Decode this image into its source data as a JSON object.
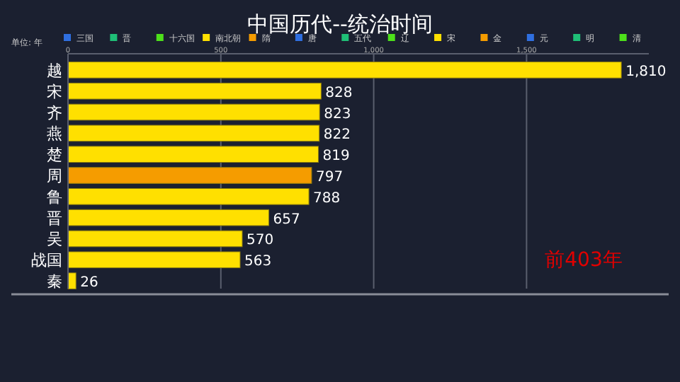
{
  "chart_data": {
    "type": "bar",
    "orientation": "horizontal",
    "title": "中国历代--统治时间",
    "xlabel": "单位: 年",
    "categories": [
      "越",
      "宋",
      "齐",
      "燕",
      "楚",
      "周",
      "鲁",
      "晋",
      "吴",
      "战国",
      "秦"
    ],
    "series": [
      {
        "values": [
          1810,
          828,
          823,
          822,
          819,
          797,
          788,
          657,
          570,
          563,
          26
        ],
        "colors": [
          "#ffe000",
          "#ffe000",
          "#ffe000",
          "#ffe000",
          "#ffe000",
          "#f59c00",
          "#ffe000",
          "#ffe000",
          "#ffe000",
          "#ffe000",
          "#ffe000"
        ],
        "value_labels": [
          "1,810",
          "828",
          "823",
          "822",
          "819",
          "797",
          "788",
          "657",
          "570",
          "563",
          "26"
        ]
      },
      {
        "name": "三国",
        "color": "#2f6fe0",
        "values": [
          null,
          null,
          null,
          null,
          null,
          null,
          null,
          null,
          null,
          null,
          null
        ]
      },
      {
        "name": "晋",
        "color": "#1fbf77",
        "values": [
          null,
          null,
          null,
          null,
          null,
          null,
          null,
          null,
          null,
          null,
          null
        ]
      },
      {
        "name": "十六国",
        "color": "#4de01a",
        "values": [
          null,
          null,
          null,
          null,
          null,
          null,
          null,
          null,
          null,
          null,
          null
        ]
      },
      {
        "name": "南北朝",
        "color": "#ffe000",
        "values": [
          null,
          null,
          null,
          null,
          null,
          null,
          null,
          null,
          null,
          null,
          null
        ]
      },
      {
        "name": "隋",
        "color": "#f59c00",
        "values": [
          null,
          null,
          null,
          null,
          null,
          null,
          null,
          null,
          null,
          null,
          null
        ]
      },
      {
        "name": "唐",
        "color": "#2f6fe0",
        "values": [
          null,
          null,
          null,
          null,
          null,
          null,
          null,
          null,
          null,
          null,
          null
        ]
      },
      {
        "name": "五代",
        "color": "#1fbf77",
        "values": [
          null,
          null,
          null,
          null,
          null,
          null,
          null,
          null,
          null,
          null,
          null
        ]
      },
      {
        "name": "辽",
        "color": "#4de01a",
        "values": [
          null,
          null,
          null,
          null,
          null,
          null,
          null,
          null,
          null,
          null,
          null
        ]
      },
      {
        "name": "宋",
        "color": "#ffe000",
        "values": [
          null,
          null,
          null,
          null,
          null,
          null,
          null,
          null,
          null,
          null,
          null
        ]
      },
      {
        "name": "金",
        "color": "#f59c00",
        "values": [
          null,
          null,
          null,
          null,
          null,
          null,
          null,
          null,
          null,
          null,
          null
        ]
      },
      {
        "name": "元",
        "color": "#2f6fe0",
        "values": [
          null,
          null,
          null,
          null,
          null,
          null,
          null,
          null,
          null,
          null,
          null
        ]
      },
      {
        "name": "明",
        "color": "#1fbf77",
        "values": [
          null,
          null,
          null,
          null,
          null,
          null,
          null,
          null,
          null,
          null,
          null
        ]
      },
      {
        "name": "清",
        "color": "#4de01a",
        "values": [
          null,
          null,
          null,
          null,
          null,
          null,
          null,
          null,
          null,
          null,
          null
        ]
      }
    ],
    "xlim": [
      0,
      1900
    ],
    "xticks": [
      0,
      500,
      {
        "value": 1000,
        "label": "1,000"
      },
      {
        "value": 1500,
        "label": "1,500"
      }
    ],
    "grid": "x",
    "legend": "top",
    "annotations": [
      "前403年"
    ]
  }
}
